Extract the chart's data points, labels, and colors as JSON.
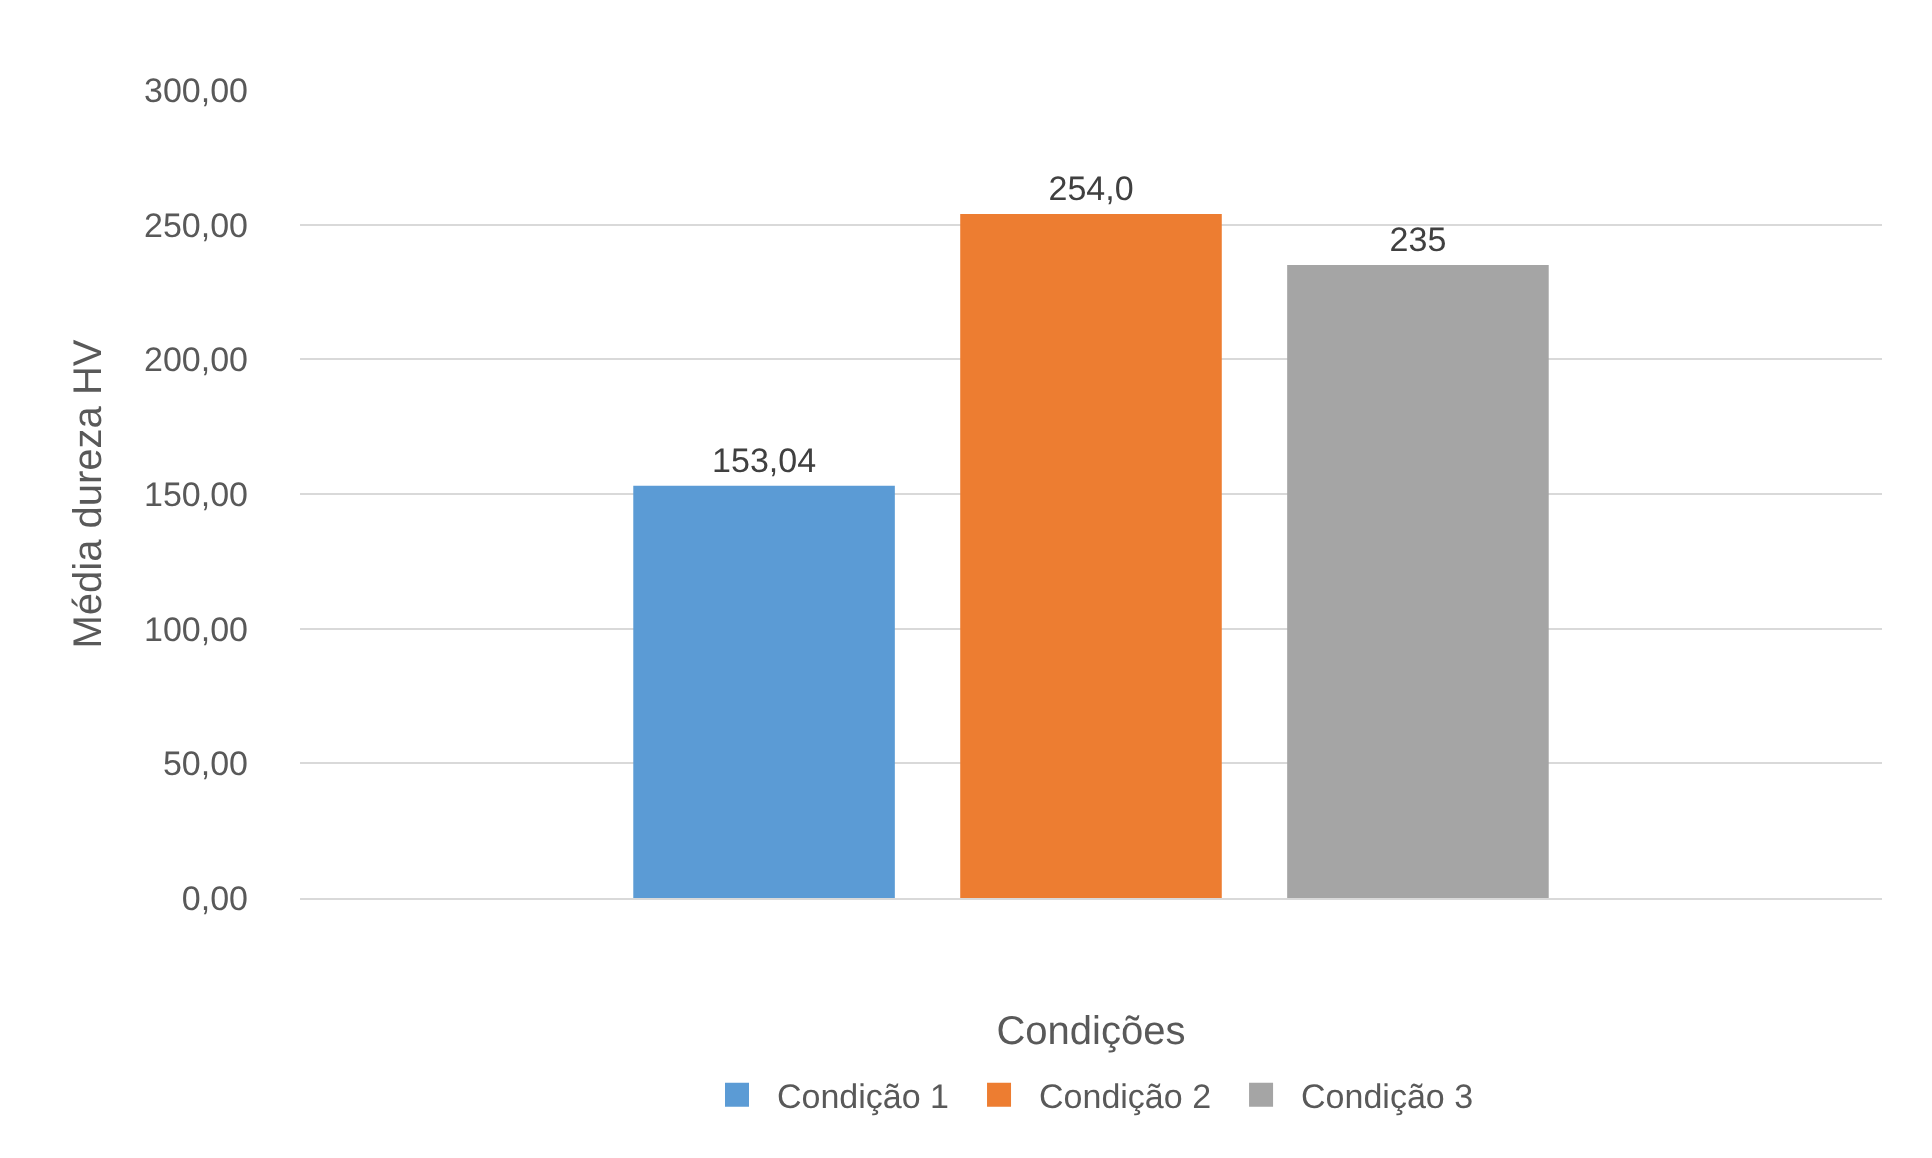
{
  "chart_data": {
    "type": "bar",
    "xlabel": "Condições",
    "ylabel": "Média dureza HV",
    "categories": [
      null
    ],
    "series": [
      {
        "name": "Condição 1",
        "color": "#5b9bd5",
        "values": [
          153.04
        ],
        "value_labels": [
          "153,04"
        ]
      },
      {
        "name": "Condição 2",
        "color": "#ed7d31",
        "values": [
          254.0
        ],
        "value_labels": [
          "254,0"
        ]
      },
      {
        "name": "Condição 3",
        "color": "#a5a5a5",
        "values": [
          235
        ],
        "value_labels": [
          "235"
        ]
      }
    ],
    "ylim": [
      0,
      300
    ],
    "yticks": [
      {
        "value": 0,
        "label": "0,00"
      },
      {
        "value": 50,
        "label": "50,00"
      },
      {
        "value": 100,
        "label": "100,00"
      },
      {
        "value": 150,
        "label": "150,00"
      },
      {
        "value": 200,
        "label": "200,00"
      },
      {
        "value": 250,
        "label": "250,00"
      },
      {
        "value": 300,
        "label": "300,00"
      }
    ],
    "grid": "y",
    "legend": "bottom"
  }
}
